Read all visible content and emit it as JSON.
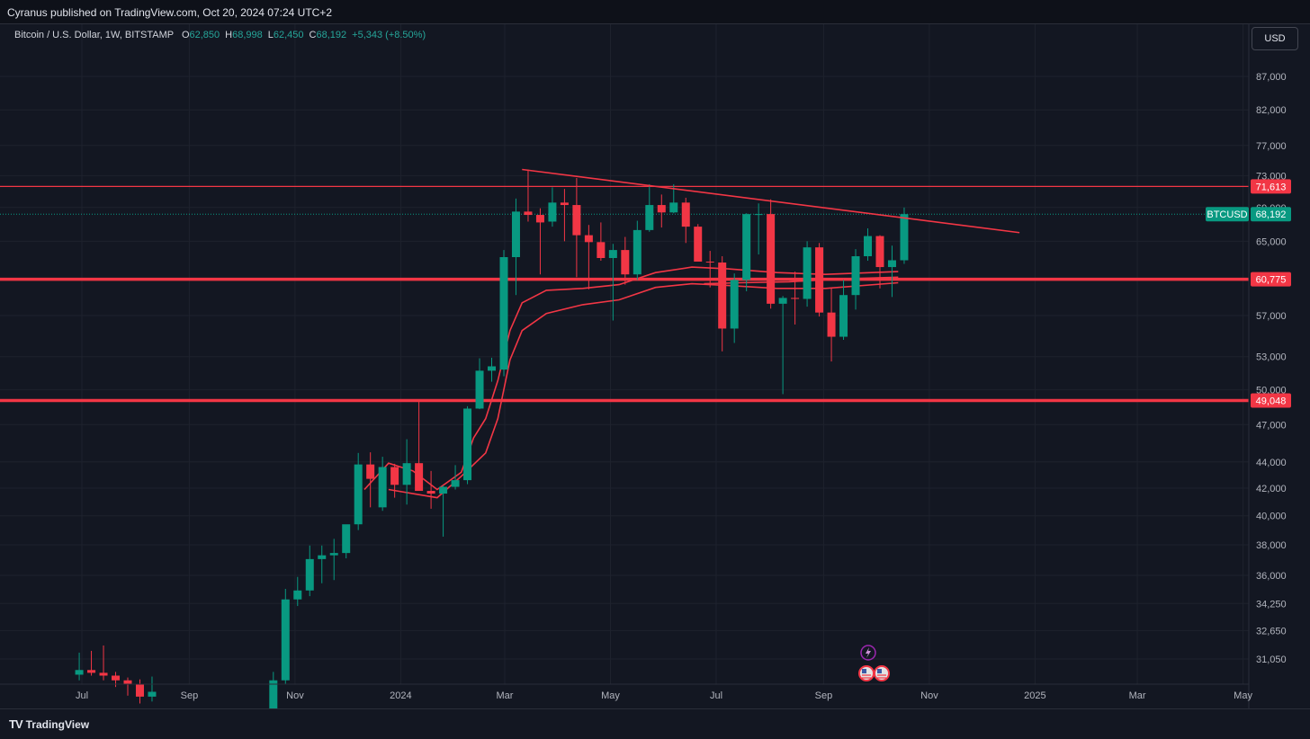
{
  "header": {
    "publisher": "Cyranus published on TradingView.com, Oct 20, 2024 07:24 UTC+2"
  },
  "legend": {
    "symbol": "Bitcoin / U.S. Dollar, 1W, BITSTAMP",
    "open_label": "O",
    "open": "62,850",
    "high_label": "H",
    "high": "68,998",
    "low_label": "L",
    "low": "62,450",
    "close_label": "C",
    "close": "68,192",
    "change": "+5,343 (+8.50%)"
  },
  "toolbar": {
    "currency": "USD"
  },
  "footer": {
    "brand": "TradingView",
    "brand_mark": "TV"
  },
  "colors": {
    "background": "#131722",
    "up": "#089981",
    "down": "#f23645",
    "lines": "#f23645"
  },
  "chart_data": {
    "type": "candlestick",
    "symbol": "BTCUSD",
    "interval": "1W",
    "y_scale": "log",
    "y_ticks": [
      31050,
      32650,
      34250,
      36000,
      38000,
      40000,
      42000,
      44000,
      47000,
      50000,
      53000,
      57000,
      65000,
      69000,
      73000,
      77000,
      82000,
      87000
    ],
    "y_tick_labels": [
      "31,050",
      "32,650",
      "34,250",
      "36,000",
      "38,000",
      "40,000",
      "42,000",
      "44,000",
      "47,000",
      "50,000",
      "53,000",
      "57,000",
      "65,000",
      "69,000",
      "73,000",
      "77,000",
      "82,000",
      "87,000"
    ],
    "x_ticks": [
      "2023-07-01",
      "2023-09-01",
      "2023-11-01",
      "2024-01-01",
      "2024-03-01",
      "2024-05-01",
      "2024-07-01",
      "2024-09-01",
      "2024-11-01",
      "2025-01-01",
      "2025-03-01",
      "2025-05-01"
    ],
    "x_tick_labels": [
      "Jul",
      "Sep",
      "Nov",
      "2024",
      "Mar",
      "May",
      "Jul",
      "Sep",
      "Nov",
      "2025",
      "Mar",
      "May"
    ],
    "grid": true,
    "price_tags": [
      {
        "label": "71,613",
        "value": 71613
      },
      {
        "label": "60,775",
        "value": 60775
      },
      {
        "label": "49,048",
        "value": 49048
      }
    ],
    "current_price": {
      "symbol_label": "BTCUSD",
      "label": "68,192",
      "value": 68192
    },
    "horizontal_lines": [
      71613,
      60775,
      49048
    ],
    "trendline": {
      "start": {
        "date": "2024-03-11",
        "price": 73800
      },
      "end": {
        "date": "2024-12-23",
        "price": 66000
      }
    },
    "candles": [
      {
        "d": "2023-06-26",
        "o": 30200,
        "h": 31400,
        "l": 29900,
        "c": 30450
      },
      {
        "d": "2023-07-03",
        "o": 30450,
        "h": 31500,
        "l": 30150,
        "c": 30300
      },
      {
        "d": "2023-07-10",
        "o": 30300,
        "h": 31800,
        "l": 29900,
        "c": 30150
      },
      {
        "d": "2023-07-17",
        "o": 30150,
        "h": 30350,
        "l": 29550,
        "c": 29900
      },
      {
        "d": "2023-07-24",
        "o": 29900,
        "h": 30050,
        "l": 29100,
        "c": 29700
      },
      {
        "d": "2023-07-31",
        "o": 29700,
        "h": 29950,
        "l": 28700,
        "c": 29050
      },
      {
        "d": "2023-08-07",
        "o": 29050,
        "h": 30100,
        "l": 28800,
        "c": 29300
      },
      {
        "d": "2023-10-16",
        "o": 26800,
        "h": 30350,
        "l": 26500,
        "c": 29900
      },
      {
        "d": "2023-10-23",
        "o": 29900,
        "h": 35150,
        "l": 29700,
        "c": 34500
      },
      {
        "d": "2023-10-30",
        "o": 34500,
        "h": 35900,
        "l": 34100,
        "c": 35050
      },
      {
        "d": "2023-11-06",
        "o": 35050,
        "h": 37950,
        "l": 34700,
        "c": 37050
      },
      {
        "d": "2023-11-13",
        "o": 37050,
        "h": 37950,
        "l": 35500,
        "c": 37300
      },
      {
        "d": "2023-11-20",
        "o": 37300,
        "h": 38400,
        "l": 35700,
        "c": 37450
      },
      {
        "d": "2023-11-27",
        "o": 37450,
        "h": 39050,
        "l": 37100,
        "c": 39400
      },
      {
        "d": "2023-12-04",
        "o": 39400,
        "h": 44700,
        "l": 39000,
        "c": 43800
      },
      {
        "d": "2023-12-11",
        "o": 43800,
        "h": 44750,
        "l": 40600,
        "c": 42700
      },
      {
        "d": "2023-12-18",
        "o": 40600,
        "h": 44400,
        "l": 40350,
        "c": 43600
      },
      {
        "d": "2023-12-25",
        "o": 43600,
        "h": 43850,
        "l": 41300,
        "c": 42250
      },
      {
        "d": "2024-01-01",
        "o": 42250,
        "h": 45800,
        "l": 40800,
        "c": 43900
      },
      {
        "d": "2024-01-08",
        "o": 43900,
        "h": 48950,
        "l": 41800,
        "c": 41800
      },
      {
        "d": "2024-01-15",
        "o": 41800,
        "h": 43300,
        "l": 40500,
        "c": 41600
      },
      {
        "d": "2024-01-22",
        "o": 41600,
        "h": 42200,
        "l": 38550,
        "c": 42100
      },
      {
        "d": "2024-01-29",
        "o": 42100,
        "h": 43750,
        "l": 41900,
        "c": 42600
      },
      {
        "d": "2024-02-05",
        "o": 42600,
        "h": 48550,
        "l": 42300,
        "c": 48350
      },
      {
        "d": "2024-02-12",
        "o": 48350,
        "h": 52850,
        "l": 48300,
        "c": 51700
      },
      {
        "d": "2024-02-19",
        "o": 51700,
        "h": 52900,
        "l": 50700,
        "c": 52100
      },
      {
        "d": "2024-02-26",
        "o": 51800,
        "h": 64000,
        "l": 51200,
        "c": 63200
      },
      {
        "d": "2024-03-04",
        "o": 63200,
        "h": 70100,
        "l": 59100,
        "c": 68500
      },
      {
        "d": "2024-03-11",
        "o": 68500,
        "h": 73800,
        "l": 67300,
        "c": 68100
      },
      {
        "d": "2024-03-18",
        "o": 68100,
        "h": 68900,
        "l": 61300,
        "c": 67200
      },
      {
        "d": "2024-03-25",
        "o": 67300,
        "h": 71500,
        "l": 66700,
        "c": 69600
      },
      {
        "d": "2024-04-01",
        "o": 69600,
        "h": 71300,
        "l": 65000,
        "c": 69300
      },
      {
        "d": "2024-04-08",
        "o": 69300,
        "h": 72700,
        "l": 61000,
        "c": 65700
      },
      {
        "d": "2024-04-15",
        "o": 65700,
        "h": 66900,
        "l": 59700,
        "c": 64900
      },
      {
        "d": "2024-04-22",
        "o": 64900,
        "h": 67200,
        "l": 62800,
        "c": 63100
      },
      {
        "d": "2024-04-29",
        "o": 63100,
        "h": 64700,
        "l": 56500,
        "c": 64000
      },
      {
        "d": "2024-05-06",
        "o": 64000,
        "h": 65500,
        "l": 60200,
        "c": 61300
      },
      {
        "d": "2024-05-13",
        "o": 61300,
        "h": 67400,
        "l": 60700,
        "c": 66300
      },
      {
        "d": "2024-05-20",
        "o": 66300,
        "h": 71900,
        "l": 66100,
        "c": 69300
      },
      {
        "d": "2024-05-27",
        "o": 69300,
        "h": 70600,
        "l": 66600,
        "c": 68400
      },
      {
        "d": "2024-06-03",
        "o": 68400,
        "h": 71900,
        "l": 68300,
        "c": 69600
      },
      {
        "d": "2024-06-10",
        "o": 69600,
        "h": 70200,
        "l": 64800,
        "c": 66700
      },
      {
        "d": "2024-06-17",
        "o": 66700,
        "h": 67000,
        "l": 62800,
        "c": 62700
      },
      {
        "d": "2024-06-24",
        "o": 62700,
        "h": 63900,
        "l": 59900,
        "c": 62600
      },
      {
        "d": "2024-07-01",
        "o": 62600,
        "h": 63300,
        "l": 53500,
        "c": 55700
      },
      {
        "d": "2024-07-08",
        "o": 55700,
        "h": 61400,
        "l": 54300,
        "c": 60700
      },
      {
        "d": "2024-07-15",
        "o": 60700,
        "h": 68300,
        "l": 59500,
        "c": 68200
      },
      {
        "d": "2024-07-22",
        "o": 68200,
        "h": 69500,
        "l": 63500,
        "c": 68200
      },
      {
        "d": "2024-07-29",
        "o": 68200,
        "h": 70000,
        "l": 57700,
        "c": 58200
      },
      {
        "d": "2024-08-05",
        "o": 58200,
        "h": 59000,
        "l": 49600,
        "c": 58800
      },
      {
        "d": "2024-08-12",
        "o": 58800,
        "h": 61600,
        "l": 56100,
        "c": 58700
      },
      {
        "d": "2024-08-19",
        "o": 58700,
        "h": 65000,
        "l": 57900,
        "c": 64300
      },
      {
        "d": "2024-08-26",
        "o": 64300,
        "h": 64800,
        "l": 56900,
        "c": 57300
      },
      {
        "d": "2024-09-02",
        "o": 57300,
        "h": 59800,
        "l": 52550,
        "c": 54900
      },
      {
        "d": "2024-09-09",
        "o": 54900,
        "h": 60700,
        "l": 54600,
        "c": 59100
      },
      {
        "d": "2024-09-16",
        "o": 59100,
        "h": 64100,
        "l": 57600,
        "c": 63300
      },
      {
        "d": "2024-09-23",
        "o": 63300,
        "h": 66500,
        "l": 62800,
        "c": 65600
      },
      {
        "d": "2024-09-30",
        "o": 65600,
        "h": 65700,
        "l": 59800,
        "c": 62100
      },
      {
        "d": "2024-10-07",
        "o": 62100,
        "h": 64500,
        "l": 58900,
        "c": 62850
      },
      {
        "d": "2024-10-14",
        "o": 62850,
        "h": 68998,
        "l": 62450,
        "c": 68192
      }
    ],
    "ma_lines": [
      {
        "points": [
          [
            "2023-12-11",
            41900
          ],
          [
            "2023-12-25",
            43900
          ],
          [
            "2024-01-08",
            43300
          ],
          [
            "2024-01-22",
            41900
          ],
          [
            "2024-02-05",
            43200
          ],
          [
            "2024-02-12",
            45900
          ],
          [
            "2024-02-19",
            47500
          ],
          [
            "2024-02-26",
            50800
          ],
          [
            "2024-03-04",
            55500
          ],
          [
            "2024-03-11",
            58300
          ],
          [
            "2024-03-25",
            59600
          ],
          [
            "2024-04-15",
            59800
          ],
          [
            "2024-05-06",
            60200
          ],
          [
            "2024-05-27",
            61500
          ],
          [
            "2024-06-17",
            62100
          ],
          [
            "2024-07-08",
            61900
          ],
          [
            "2024-08-05",
            61500
          ],
          [
            "2024-09-02",
            61300
          ],
          [
            "2024-10-14",
            61600
          ]
        ]
      },
      {
        "points": [
          [
            "2023-12-25",
            41900
          ],
          [
            "2024-01-22",
            41300
          ],
          [
            "2024-02-05",
            42900
          ],
          [
            "2024-02-19",
            44700
          ],
          [
            "2024-02-26",
            47500
          ],
          [
            "2024-03-04",
            52700
          ],
          [
            "2024-03-11",
            55500
          ],
          [
            "2024-03-25",
            57200
          ],
          [
            "2024-04-15",
            58100
          ],
          [
            "2024-05-06",
            58600
          ],
          [
            "2024-05-27",
            59900
          ],
          [
            "2024-06-17",
            60300
          ],
          [
            "2024-07-08",
            60100
          ],
          [
            "2024-08-05",
            59800
          ],
          [
            "2024-09-02",
            59800
          ],
          [
            "2024-10-14",
            60400
          ]
        ]
      },
      {
        "points": [
          [
            "2024-06-24",
            60300
          ],
          [
            "2024-07-15",
            60400
          ],
          [
            "2024-08-12",
            60500
          ],
          [
            "2024-09-09",
            60800
          ],
          [
            "2024-10-14",
            61000
          ]
        ]
      }
    ],
    "event_icons": [
      "lightning-icon",
      "us-flag-icon",
      "us-flag-icon"
    ]
  }
}
